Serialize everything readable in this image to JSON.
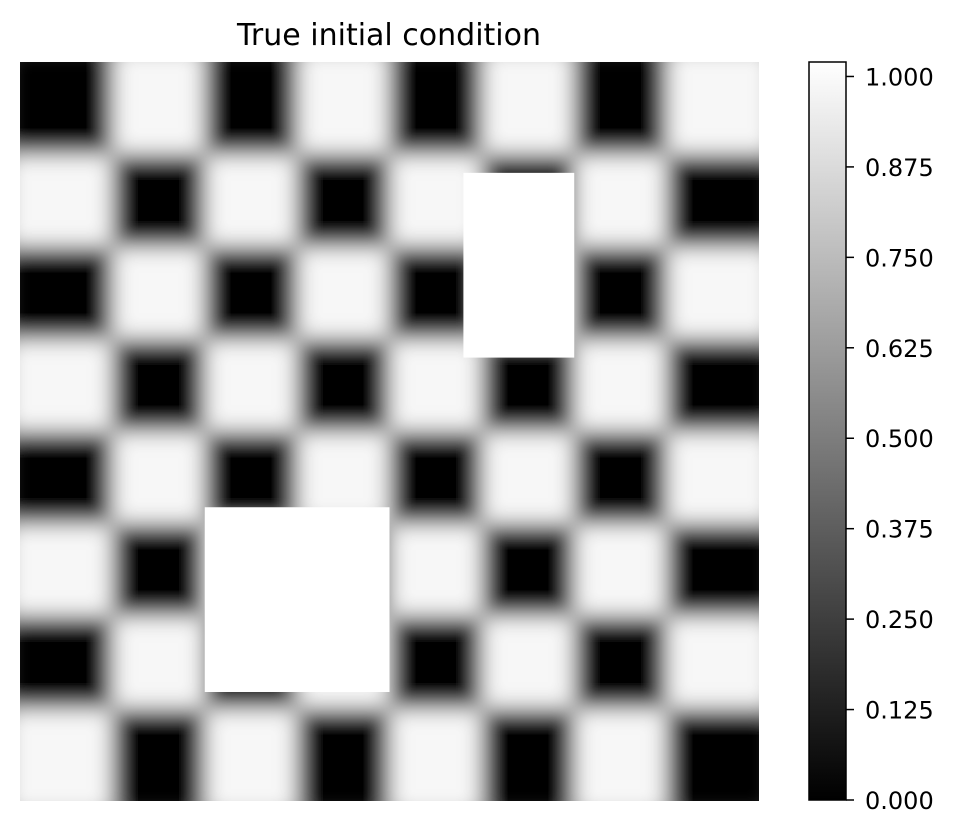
{
  "chart_data": {
    "type": "heatmap",
    "title": "True initial condition",
    "xlabel": "",
    "ylabel": "",
    "axes_visible": false,
    "grid": false,
    "colormap": "gray",
    "colorbar": {
      "placement": "right",
      "vmin": 0.0,
      "vmax": 1.02,
      "tick_values": [
        0.0,
        0.125,
        0.25,
        0.375,
        0.5,
        0.625,
        0.75,
        0.875,
        1.0
      ],
      "tick_labels": [
        "0.000",
        "0.125",
        "0.250",
        "0.375",
        "0.500",
        "0.625",
        "0.750",
        "0.875",
        "1.000"
      ]
    },
    "checkerboard": {
      "rows": 8,
      "cols": 8,
      "dark_value": 0.0,
      "light_value": 0.97,
      "top_left": "dark"
    },
    "masked_regions": [
      {
        "row_start": 1.2,
        "row_end": 3.2,
        "col_start": 4.8,
        "col_end": 6.0,
        "value": 1.02
      },
      {
        "row_start": 4.82,
        "row_end": 6.82,
        "col_start": 2.0,
        "col_end": 4.0,
        "value": 1.02
      }
    ],
    "colors": {
      "dark": "#050505",
      "light": "#f7f7f7",
      "mask": "#ffffff",
      "edge": "#000000"
    }
  }
}
